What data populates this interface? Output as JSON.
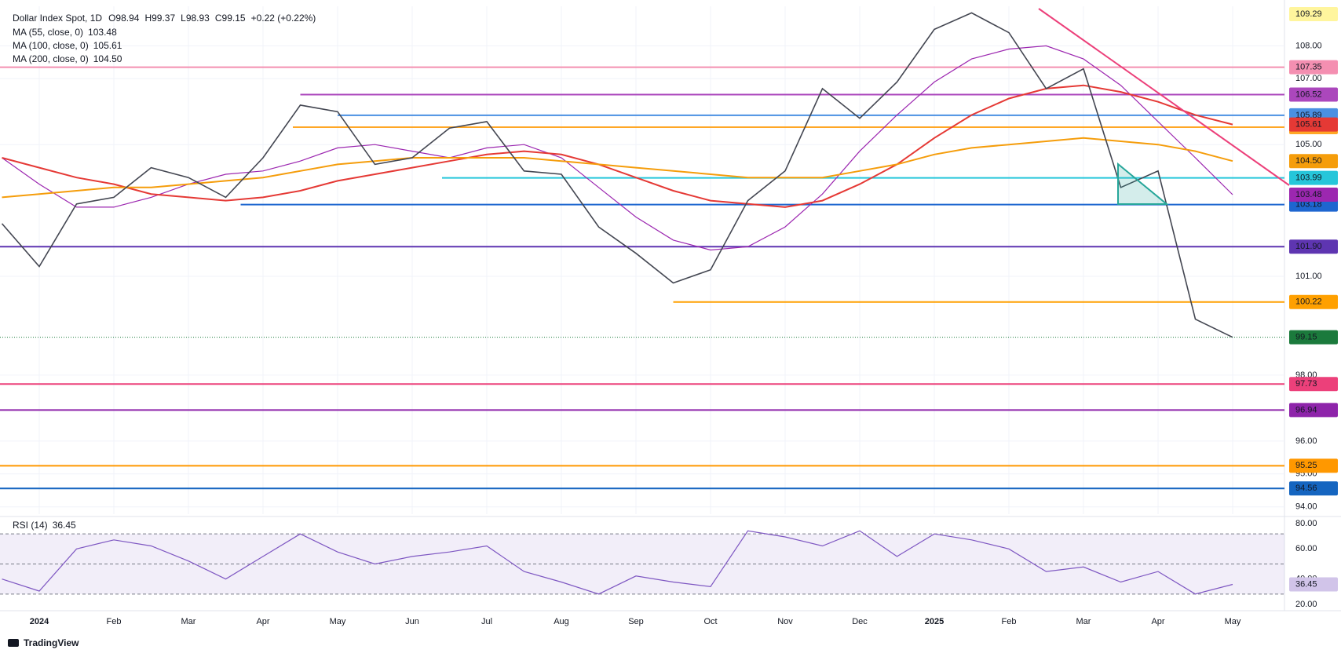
{
  "chart_data": {
    "type": "line",
    "title": "Dollar Index Spot, 1D",
    "ohlc": [
      {
        "name": "O",
        "value": 98.94
      },
      {
        "name": "H",
        "value": 99.37
      },
      {
        "name": "L",
        "value": 98.93
      },
      {
        "name": "C",
        "value": 99.15
      }
    ],
    "change": "+0.22 (+0.22%)",
    "up_color": "#089981",
    "xtick_labels": [
      "2024",
      "Feb",
      "Mar",
      "Apr",
      "May",
      "Jun",
      "Jul",
      "Aug",
      "Sep",
      "Oct",
      "Nov",
      "Dec",
      "2025",
      "Feb",
      "Mar",
      "Apr",
      "May"
    ],
    "values": [
      102.6,
      101.3,
      103.2,
      103.4,
      104.3,
      104.0,
      103.4,
      104.6,
      106.2,
      106.0,
      104.4,
      104.6,
      105.5,
      105.7,
      104.2,
      104.1,
      102.5,
      101.7,
      100.8,
      101.2,
      103.3,
      104.2,
      106.7,
      105.8,
      106.9,
      108.5,
      109.0,
      108.4,
      106.7,
      107.3,
      103.7,
      104.2,
      99.7,
      99.15
    ],
    "color": "#434651",
    "last_color": "#1b7a3c",
    "series": [
      {
        "name": "MA (55, close, 0)",
        "color": "#9c27b0",
        "last_label": "103.48",
        "values": [
          104.6,
          103.8,
          103.1,
          103.1,
          103.4,
          103.8,
          104.1,
          104.2,
          104.5,
          104.9,
          105.0,
          104.8,
          104.6,
          104.9,
          105.0,
          104.6,
          103.7,
          102.8,
          102.1,
          101.8,
          101.9,
          102.5,
          103.5,
          104.8,
          105.9,
          106.9,
          107.6,
          107.9,
          108.0,
          107.6,
          106.8,
          105.7,
          104.6,
          103.48
        ]
      },
      {
        "name": "MA (100, close, 0)",
        "color": "#e53935",
        "last_label": "105.61",
        "values": [
          104.6,
          104.3,
          104.0,
          103.8,
          103.5,
          103.4,
          103.3,
          103.4,
          103.6,
          103.9,
          104.1,
          104.3,
          104.5,
          104.7,
          104.8,
          104.7,
          104.4,
          104.0,
          103.6,
          103.3,
          103.2,
          103.1,
          103.3,
          103.8,
          104.4,
          105.2,
          105.9,
          106.4,
          106.7,
          106.8,
          106.6,
          106.3,
          105.9,
          105.61
        ]
      },
      {
        "name": "MA (200, close, 0)",
        "color": "#f59d0b",
        "last_label": "104.50",
        "values": [
          103.4,
          103.5,
          103.6,
          103.7,
          103.7,
          103.8,
          103.9,
          104.0,
          104.2,
          104.4,
          104.5,
          104.6,
          104.6,
          104.6,
          104.6,
          104.5,
          104.4,
          104.3,
          104.2,
          104.1,
          104.0,
          104.0,
          104.0,
          104.2,
          104.4,
          104.7,
          104.9,
          105.0,
          105.1,
          105.2,
          105.1,
          105.0,
          104.8,
          104.5
        ]
      }
    ],
    "ylim": [
      93.78,
      109.2
    ],
    "yticks": [
      {
        "value": 94,
        "label": "94.00"
      },
      {
        "value": 95,
        "label": "95.00"
      },
      {
        "value": 96,
        "label": "96.00"
      },
      {
        "value": 98,
        "label": "98.00"
      },
      {
        "value": 101,
        "label": "101.00"
      },
      {
        "value": 105,
        "label": "105.00"
      },
      {
        "value": 107,
        "label": "107.00"
      },
      {
        "value": 108,
        "label": "108.00"
      }
    ],
    "grid": true,
    "high_label": {
      "value": 109.29,
      "color": "#fff59d"
    },
    "levels": [
      {
        "value": 107.35,
        "color": "#f48fb1"
      },
      {
        "value": 106.52,
        "color": "#ab47bc"
      },
      {
        "value": 105.89,
        "color": "#4a90e2"
      },
      {
        "value": 105.53,
        "color": "#ffa726"
      },
      {
        "value": 103.99,
        "color": "#26c6da"
      },
      {
        "value": 103.18,
        "color": "#1e66d0"
      },
      {
        "value": 101.9,
        "label": "101.90",
        "color": "#5e35b1"
      },
      {
        "value": 100.22,
        "color": "#ffa000"
      },
      {
        "value": 97.73,
        "color": "#ec407a"
      },
      {
        "value": 96.94,
        "color": "#8e24aa"
      },
      {
        "value": 95.25,
        "color": "#ff9800"
      },
      {
        "value": 94.56,
        "color": "#1565c0"
      }
    ],
    "rsi": {
      "title": "RSI (14)",
      "color": "#7e57c2",
      "values": [
        40,
        32,
        60,
        66,
        62,
        52,
        40,
        55,
        70,
        58,
        50,
        55,
        58,
        62,
        45,
        38,
        30,
        42,
        38,
        35,
        72,
        68,
        62,
        72,
        55,
        70,
        66,
        60,
        45,
        48,
        38,
        45,
        30,
        36.45
      ],
      "ylim": [
        20,
        80
      ],
      "yticks": [
        {
          "value": 20,
          "label": "20.00"
        },
        {
          "value": 40,
          "label": "40.00"
        },
        {
          "value": 60,
          "label": "60.00"
        },
        {
          "value": 80,
          "label": "80.00"
        }
      ],
      "bands": [
        70,
        50,
        30
      ]
    },
    "footer": "TradingView"
  }
}
